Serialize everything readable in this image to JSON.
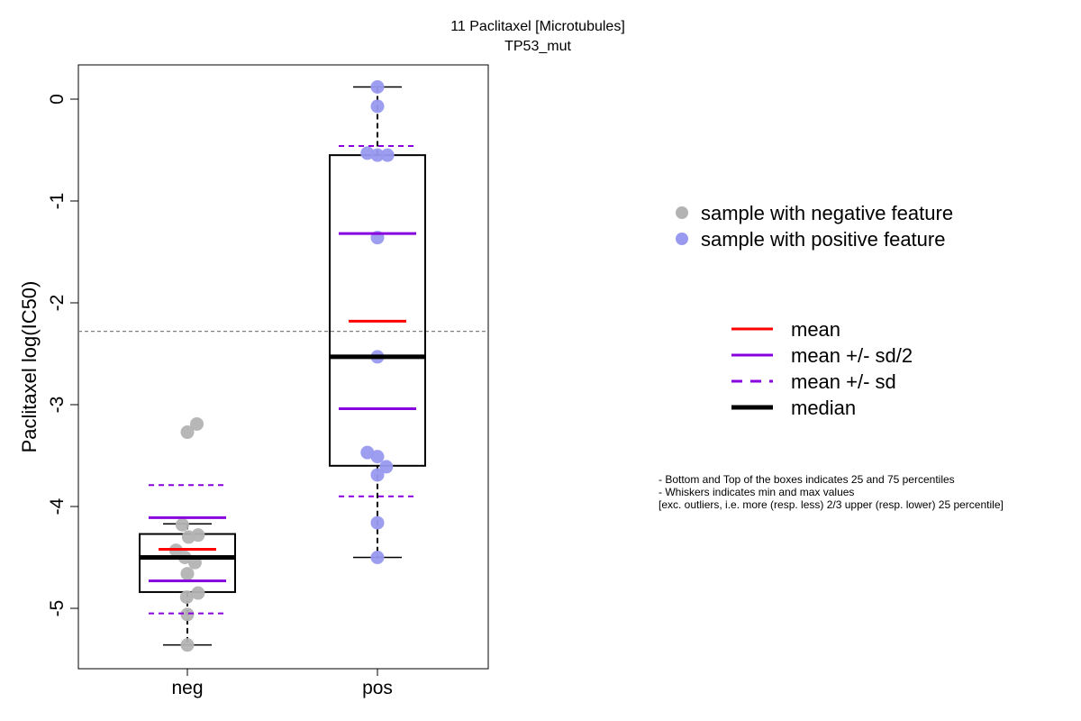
{
  "chart_data": {
    "type": "box",
    "title": "11 Paclitaxel [Microtubules]",
    "subtitle": "TP53_mut",
    "ylabel": "Paclitaxel log(IC50)",
    "xlabel": "",
    "categories": [
      "neg",
      "pos"
    ],
    "ylim": [
      -5.58,
      0.33
    ],
    "yticks": [
      0,
      -1,
      -2,
      -3,
      -4,
      -5
    ],
    "ytick_labels": [
      "0",
      "-1",
      "-2",
      "-3",
      "-4",
      "-5"
    ],
    "reference_line": -2.28,
    "colors": {
      "neg_points": "#b3b3b3",
      "pos_points": "#9999f0",
      "mean": "#ff0000",
      "sd": "#8800dd",
      "median": "#000000",
      "reference": "#808080"
    },
    "groups": [
      {
        "name": "neg",
        "whisker_low": -5.36,
        "q1": -4.84,
        "median": -4.5,
        "q3": -4.27,
        "whisker_high": -4.17,
        "mean": -4.42,
        "mean_minus_half_sd": -4.73,
        "mean_plus_half_sd": -4.11,
        "mean_minus_sd": -5.05,
        "mean_plus_sd": -3.79,
        "points": [
          {
            "offset": 0.15,
            "y": -3.19
          },
          {
            "offset": 0.0,
            "y": -3.27
          },
          {
            "offset": -0.08,
            "y": -4.18
          },
          {
            "offset": -0.18,
            "y": -4.43
          },
          {
            "offset": 0.17,
            "y": -4.28
          },
          {
            "offset": 0.02,
            "y": -4.3
          },
          {
            "offset": -0.04,
            "y": -4.5
          },
          {
            "offset": 0.12,
            "y": -4.55
          },
          {
            "offset": 0.0,
            "y": -4.66
          },
          {
            "offset": 0.17,
            "y": -4.85
          },
          {
            "offset": -0.01,
            "y": -4.89
          },
          {
            "offset": 0.0,
            "y": -5.06
          },
          {
            "offset": 0.0,
            "y": -5.36
          }
        ]
      },
      {
        "name": "pos",
        "whisker_low": -4.5,
        "q1": -3.6,
        "median": -2.53,
        "q3": -0.55,
        "whisker_high": 0.12,
        "mean": -2.18,
        "mean_minus_half_sd": -3.04,
        "mean_plus_half_sd": -1.32,
        "mean_minus_sd": -3.9,
        "mean_plus_sd": -0.46,
        "points": [
          {
            "offset": 0.0,
            "y": 0.12
          },
          {
            "offset": 0.0,
            "y": -0.07
          },
          {
            "offset": -0.16,
            "y": -0.53
          },
          {
            "offset": 0.0,
            "y": -0.55
          },
          {
            "offset": 0.16,
            "y": -0.55
          },
          {
            "offset": 0.0,
            "y": -1.36
          },
          {
            "offset": 0.0,
            "y": -2.53
          },
          {
            "offset": -0.16,
            "y": -3.47
          },
          {
            "offset": 0.0,
            "y": -3.51
          },
          {
            "offset": 0.14,
            "y": -3.61
          },
          {
            "offset": 0.0,
            "y": -3.69
          },
          {
            "offset": 0.0,
            "y": -4.16
          },
          {
            "offset": 0.0,
            "y": -4.5
          }
        ]
      }
    ]
  },
  "legend_points": [
    {
      "label": "sample with negative feature",
      "color": "#b3b3b3"
    },
    {
      "label": "sample with positive feature",
      "color": "#9999f0"
    }
  ],
  "legend_lines": [
    {
      "label": "mean",
      "color": "#ff0000",
      "style": "solid",
      "weight": "normal"
    },
    {
      "label": "mean +/- sd/2",
      "color": "#8800dd",
      "style": "solid",
      "weight": "normal"
    },
    {
      "label": "mean +/- sd",
      "color": "#8800dd",
      "style": "dashed",
      "weight": "normal"
    },
    {
      "label": "median",
      "color": "#000000",
      "style": "solid",
      "weight": "bold"
    }
  ],
  "notes": [
    "- Bottom and Top of the boxes indicates 25 and 75 percentiles",
    "- Whiskers indicates min and max values",
    "[exc. outliers, i.e. more (resp. less) 2/3 upper (resp. lower) 25 percentile]"
  ]
}
